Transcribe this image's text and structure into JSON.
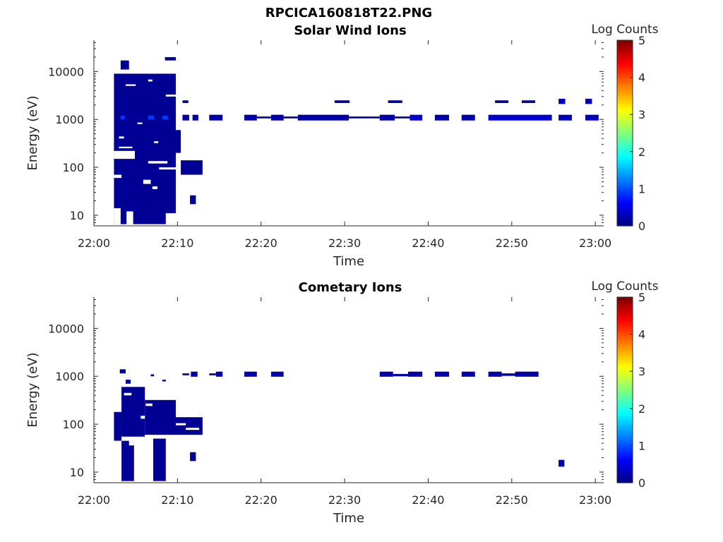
{
  "figure_title": "RPCICA160818T22.PNG",
  "chart_data": [
    {
      "type": "heatmap",
      "title": "Solar Wind Ions",
      "xlabel": "Time",
      "ylabel": "Energy (eV)",
      "x_ticks": [
        "22:00",
        "22:10",
        "22:20",
        "22:30",
        "22:40",
        "22:50",
        "23:00"
      ],
      "y_scale": "log",
      "y_ticks": [
        10,
        100,
        1000,
        10000
      ],
      "y_tick_labels": [
        "10",
        "100",
        "1000",
        "10000"
      ],
      "ylim": [
        6,
        45000
      ],
      "xlim_minutes": [
        0,
        61
      ],
      "colorbar": {
        "label": "Log Counts",
        "range": [
          0,
          5
        ],
        "ticks": [
          "0",
          "1",
          "2",
          "3",
          "4",
          "5"
        ],
        "colormap": "jet"
      },
      "grid": false,
      "cells": [
        {
          "t0": 2.4,
          "t1": 9.8,
          "e0": 6.5,
          "e1": 9000,
          "c": 0.1
        },
        {
          "t0": 3.2,
          "t1": 4.2,
          "e0": 11000,
          "e1": 17000,
          "c": 0.1
        },
        {
          "t0": 8.5,
          "t1": 9.8,
          "e0": 17000,
          "e1": 20000,
          "c": 0.1
        },
        {
          "t0": 9.8,
          "t1": 10.4,
          "e0": 200,
          "e1": 600,
          "c": 0.1
        },
        {
          "t0": 10.4,
          "t1": 13.0,
          "e0": 70,
          "e1": 140,
          "c": 0.1
        },
        {
          "t0": 11.5,
          "t1": 12.2,
          "e0": 17,
          "e1": 26,
          "c": 0.1
        },
        {
          "t0": 10.6,
          "t1": 11.3,
          "e0": 2200,
          "e1": 2500,
          "c": 0.1
        },
        {
          "t0": 3.2,
          "t1": 3.7,
          "e0": 1000,
          "e1": 1200,
          "c": 0.9
        },
        {
          "t0": 6.5,
          "t1": 7.2,
          "e0": 1000,
          "e1": 1200,
          "c": 0.9
        },
        {
          "t0": 8.2,
          "t1": 8.9,
          "e0": 1000,
          "e1": 1200,
          "c": 0.9
        },
        {
          "t0": 10.6,
          "t1": 11.4,
          "e0": 950,
          "e1": 1250,
          "c": 0.2
        },
        {
          "t0": 11.8,
          "t1": 12.5,
          "e0": 950,
          "e1": 1250,
          "c": 0.2
        },
        {
          "t0": 13.8,
          "t1": 15.4,
          "e0": 950,
          "e1": 1250,
          "c": 0.2
        },
        {
          "t0": 18.0,
          "t1": 19.5,
          "e0": 950,
          "e1": 1250,
          "c": 0.2
        },
        {
          "t0": 19.5,
          "t1": 21.2,
          "e0": 1050,
          "e1": 1150,
          "c": 0.2
        },
        {
          "t0": 21.2,
          "t1": 22.7,
          "e0": 950,
          "e1": 1250,
          "c": 0.2
        },
        {
          "t0": 22.7,
          "t1": 24.4,
          "e0": 1050,
          "e1": 1150,
          "c": 0.2
        },
        {
          "t0": 24.4,
          "t1": 30.5,
          "e0": 950,
          "e1": 1250,
          "c": 0.2
        },
        {
          "t0": 30.5,
          "t1": 34.2,
          "e0": 1050,
          "e1": 1150,
          "c": 0.2
        },
        {
          "t0": 34.2,
          "t1": 36.0,
          "e0": 950,
          "e1": 1250,
          "c": 0.2
        },
        {
          "t0": 36.0,
          "t1": 37.8,
          "e0": 1050,
          "e1": 1150,
          "c": 0.2
        },
        {
          "t0": 37.8,
          "t1": 39.3,
          "e0": 950,
          "e1": 1250,
          "c": 0.4
        },
        {
          "t0": 40.8,
          "t1": 42.5,
          "e0": 950,
          "e1": 1250,
          "c": 0.2
        },
        {
          "t0": 44.0,
          "t1": 45.6,
          "e0": 950,
          "e1": 1250,
          "c": 0.2
        },
        {
          "t0": 47.2,
          "t1": 54.8,
          "e0": 950,
          "e1": 1250,
          "c": 0.4
        },
        {
          "t0": 55.6,
          "t1": 57.2,
          "e0": 950,
          "e1": 1250,
          "c": 0.3
        },
        {
          "t0": 58.8,
          "t1": 60.4,
          "e0": 950,
          "e1": 1250,
          "c": 0.3
        },
        {
          "t0": 28.8,
          "t1": 30.6,
          "e0": 2200,
          "e1": 2500,
          "c": 0.1
        },
        {
          "t0": 35.2,
          "t1": 36.9,
          "e0": 2200,
          "e1": 2500,
          "c": 0.1
        },
        {
          "t0": 48.0,
          "t1": 49.6,
          "e0": 2200,
          "e1": 2500,
          "c": 0.1
        },
        {
          "t0": 51.2,
          "t1": 52.8,
          "e0": 2200,
          "e1": 2500,
          "c": 0.1
        },
        {
          "t0": 55.6,
          "t1": 56.4,
          "e0": 2100,
          "e1": 2700,
          "c": 0.3
        },
        {
          "t0": 58.8,
          "t1": 59.6,
          "e0": 2100,
          "e1": 2700,
          "c": 0.3
        }
      ],
      "gaps": [
        {
          "t0": 2.4,
          "t1": 3.2,
          "e0": 6.5,
          "e1": 14
        },
        {
          "t0": 3.9,
          "t1": 4.7,
          "e0": 6.5,
          "e1": 12
        },
        {
          "t0": 8.6,
          "t1": 9.8,
          "e0": 6.5,
          "e1": 11
        },
        {
          "t0": 2.4,
          "t1": 4.9,
          "e0": 150,
          "e1": 220
        },
        {
          "t0": 6.5,
          "t1": 8.8,
          "e0": 120,
          "e1": 135
        },
        {
          "t0": 7.8,
          "t1": 9.8,
          "e0": 90,
          "e1": 100
        },
        {
          "t0": 2.4,
          "t1": 3.3,
          "e0": 60,
          "e1": 70
        },
        {
          "t0": 5.9,
          "t1": 6.8,
          "e0": 45,
          "e1": 55
        },
        {
          "t0": 7.0,
          "t1": 7.6,
          "e0": 35,
          "e1": 40
        },
        {
          "t0": 3.8,
          "t1": 5.0,
          "e0": 5000,
          "e1": 5400
        },
        {
          "t0": 6.5,
          "t1": 7.0,
          "e0": 6200,
          "e1": 6800
        },
        {
          "t0": 8.6,
          "t1": 9.8,
          "e0": 3000,
          "e1": 3300
        },
        {
          "t0": 5.2,
          "t1": 5.8,
          "e0": 800,
          "e1": 860
        },
        {
          "t0": 3.0,
          "t1": 3.6,
          "e0": 400,
          "e1": 440
        },
        {
          "t0": 7.2,
          "t1": 7.7,
          "e0": 320,
          "e1": 350
        },
        {
          "t0": 3.0,
          "t1": 4.6,
          "e0": 250,
          "e1": 270
        }
      ]
    },
    {
      "type": "heatmap",
      "title": "Cometary Ions",
      "xlabel": "Time",
      "ylabel": "Energy (eV)",
      "x_ticks": [
        "22:00",
        "22:10",
        "22:20",
        "22:30",
        "22:40",
        "22:50",
        "23:00"
      ],
      "y_scale": "log",
      "y_ticks": [
        10,
        100,
        1000,
        10000
      ],
      "y_tick_labels": [
        "10",
        "100",
        "1000",
        "10000"
      ],
      "ylim": [
        6,
        45000
      ],
      "xlim_minutes": [
        0,
        61
      ],
      "colorbar": {
        "label": "Log Counts",
        "range": [
          0,
          5
        ],
        "ticks": [
          "0",
          "1",
          "2",
          "3",
          "4",
          "5"
        ],
        "colormap": "jet"
      },
      "grid": false,
      "cells": [
        {
          "t0": 2.4,
          "t1": 3.3,
          "e0": 45,
          "e1": 180,
          "c": 0.1
        },
        {
          "t0": 3.3,
          "t1": 6.1,
          "e0": 55,
          "e1": 600,
          "c": 0.1
        },
        {
          "t0": 3.3,
          "t1": 4.8,
          "e0": 6.5,
          "e1": 45,
          "c": 0.1
        },
        {
          "t0": 3.1,
          "t1": 3.8,
          "e0": 1150,
          "e1": 1400,
          "c": 0.1
        },
        {
          "t0": 3.8,
          "t1": 4.4,
          "e0": 700,
          "e1": 850,
          "c": 0.1
        },
        {
          "t0": 6.1,
          "t1": 9.8,
          "e0": 60,
          "e1": 320,
          "c": 0.1
        },
        {
          "t0": 7.1,
          "t1": 8.6,
          "e0": 6.5,
          "e1": 50,
          "c": 0.1
        },
        {
          "t0": 9.8,
          "t1": 13.0,
          "e0": 60,
          "e1": 140,
          "c": 0.1
        },
        {
          "t0": 11.5,
          "t1": 12.2,
          "e0": 17,
          "e1": 26,
          "c": 0.1
        },
        {
          "t0": 6.8,
          "t1": 7.2,
          "e0": 1000,
          "e1": 1100,
          "c": 0.1
        },
        {
          "t0": 8.2,
          "t1": 8.6,
          "e0": 780,
          "e1": 850,
          "c": 0.1
        },
        {
          "t0": 10.6,
          "t1": 11.4,
          "e0": 1050,
          "e1": 1150,
          "c": 0.1
        },
        {
          "t0": 11.6,
          "t1": 12.4,
          "e0": 980,
          "e1": 1250,
          "c": 0.2
        },
        {
          "t0": 13.8,
          "t1": 14.6,
          "e0": 1050,
          "e1": 1150,
          "c": 0.1
        },
        {
          "t0": 14.6,
          "t1": 15.4,
          "e0": 980,
          "e1": 1250,
          "c": 0.2
        },
        {
          "t0": 18.0,
          "t1": 19.5,
          "e0": 980,
          "e1": 1250,
          "c": 0.2
        },
        {
          "t0": 21.2,
          "t1": 22.7,
          "e0": 980,
          "e1": 1250,
          "c": 0.2
        },
        {
          "t0": 34.2,
          "t1": 35.8,
          "e0": 980,
          "e1": 1250,
          "c": 0.2
        },
        {
          "t0": 35.8,
          "t1": 37.6,
          "e0": 1000,
          "e1": 1120,
          "c": 0.2
        },
        {
          "t0": 37.6,
          "t1": 39.3,
          "e0": 980,
          "e1": 1250,
          "c": 0.2
        },
        {
          "t0": 40.8,
          "t1": 42.5,
          "e0": 980,
          "e1": 1250,
          "c": 0.2
        },
        {
          "t0": 44.0,
          "t1": 45.6,
          "e0": 980,
          "e1": 1250,
          "c": 0.2
        },
        {
          "t0": 47.2,
          "t1": 48.8,
          "e0": 980,
          "e1": 1250,
          "c": 0.2
        },
        {
          "t0": 48.8,
          "t1": 50.4,
          "e0": 1020,
          "e1": 1150,
          "c": 0.2
        },
        {
          "t0": 50.4,
          "t1": 53.2,
          "e0": 980,
          "e1": 1250,
          "c": 0.2
        },
        {
          "t0": 55.6,
          "t1": 56.3,
          "e0": 13,
          "e1": 18,
          "c": 0.2
        }
      ],
      "gaps": [
        {
          "t0": 2.4,
          "t1": 3.3,
          "e0": 6.5,
          "e1": 45
        },
        {
          "t0": 4.2,
          "t1": 4.8,
          "e0": 36,
          "e1": 45
        },
        {
          "t0": 6.1,
          "t1": 6.9,
          "e0": 6.5,
          "e1": 60
        },
        {
          "t0": 5.6,
          "t1": 6.1,
          "e0": 130,
          "e1": 150
        },
        {
          "t0": 9.8,
          "t1": 11.0,
          "e0": 95,
          "e1": 105
        },
        {
          "t0": 6.2,
          "t1": 7.0,
          "e0": 240,
          "e1": 270
        },
        {
          "t0": 3.6,
          "t1": 4.5,
          "e0": 400,
          "e1": 450
        },
        {
          "t0": 11.0,
          "t1": 12.6,
          "e0": 76,
          "e1": 84
        }
      ]
    }
  ]
}
